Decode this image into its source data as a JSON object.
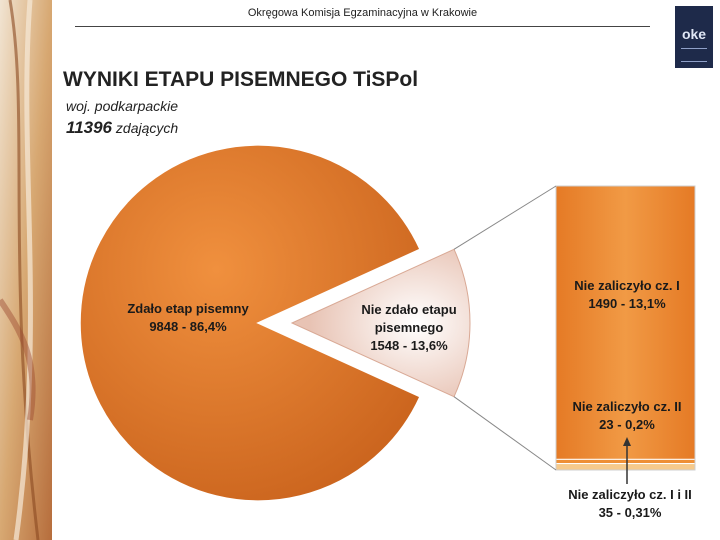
{
  "header": {
    "institution": "Okręgowa Komisja Egzaminacyjna w Krakowie",
    "logo_text": "oke"
  },
  "title": "WYNIKI ETAPU PISEMNEGO TiSPol",
  "region": "woj. podkarpackie",
  "total": {
    "count": "11396",
    "unit": "zdających"
  },
  "colors": {
    "pass": "#E27A2C",
    "fail": "#F3DCD3",
    "bar": "#EF8B2A",
    "bar_bottom": "#F6CA8C"
  },
  "chart_data": [
    {
      "type": "pie",
      "slices": [
        {
          "line1": "Zdało etap pisemny",
          "line2": "9848 - 86,4%",
          "value": 9848,
          "percent": 86.4
        },
        {
          "line1": "Nie zdało etapu",
          "line2": "pisemnego",
          "line3": "1548 - 13,6%",
          "value": 1548,
          "percent": 13.6,
          "exploded": true
        }
      ]
    },
    {
      "type": "bar",
      "stacked": true,
      "segments": [
        {
          "line1": "Nie zaliczyło cz. I",
          "line2": "1490 - 13,1%",
          "value": 1490,
          "percent": 13.1
        },
        {
          "line1": "Nie zaliczyło cz. II",
          "line2": "23 - 0,2%",
          "value": 23,
          "percent": 0.2
        },
        {
          "line1": "Nie zaliczyło cz. I i II",
          "line2": "35 - 0,31%",
          "value": 35,
          "percent": 0.31
        }
      ]
    }
  ]
}
